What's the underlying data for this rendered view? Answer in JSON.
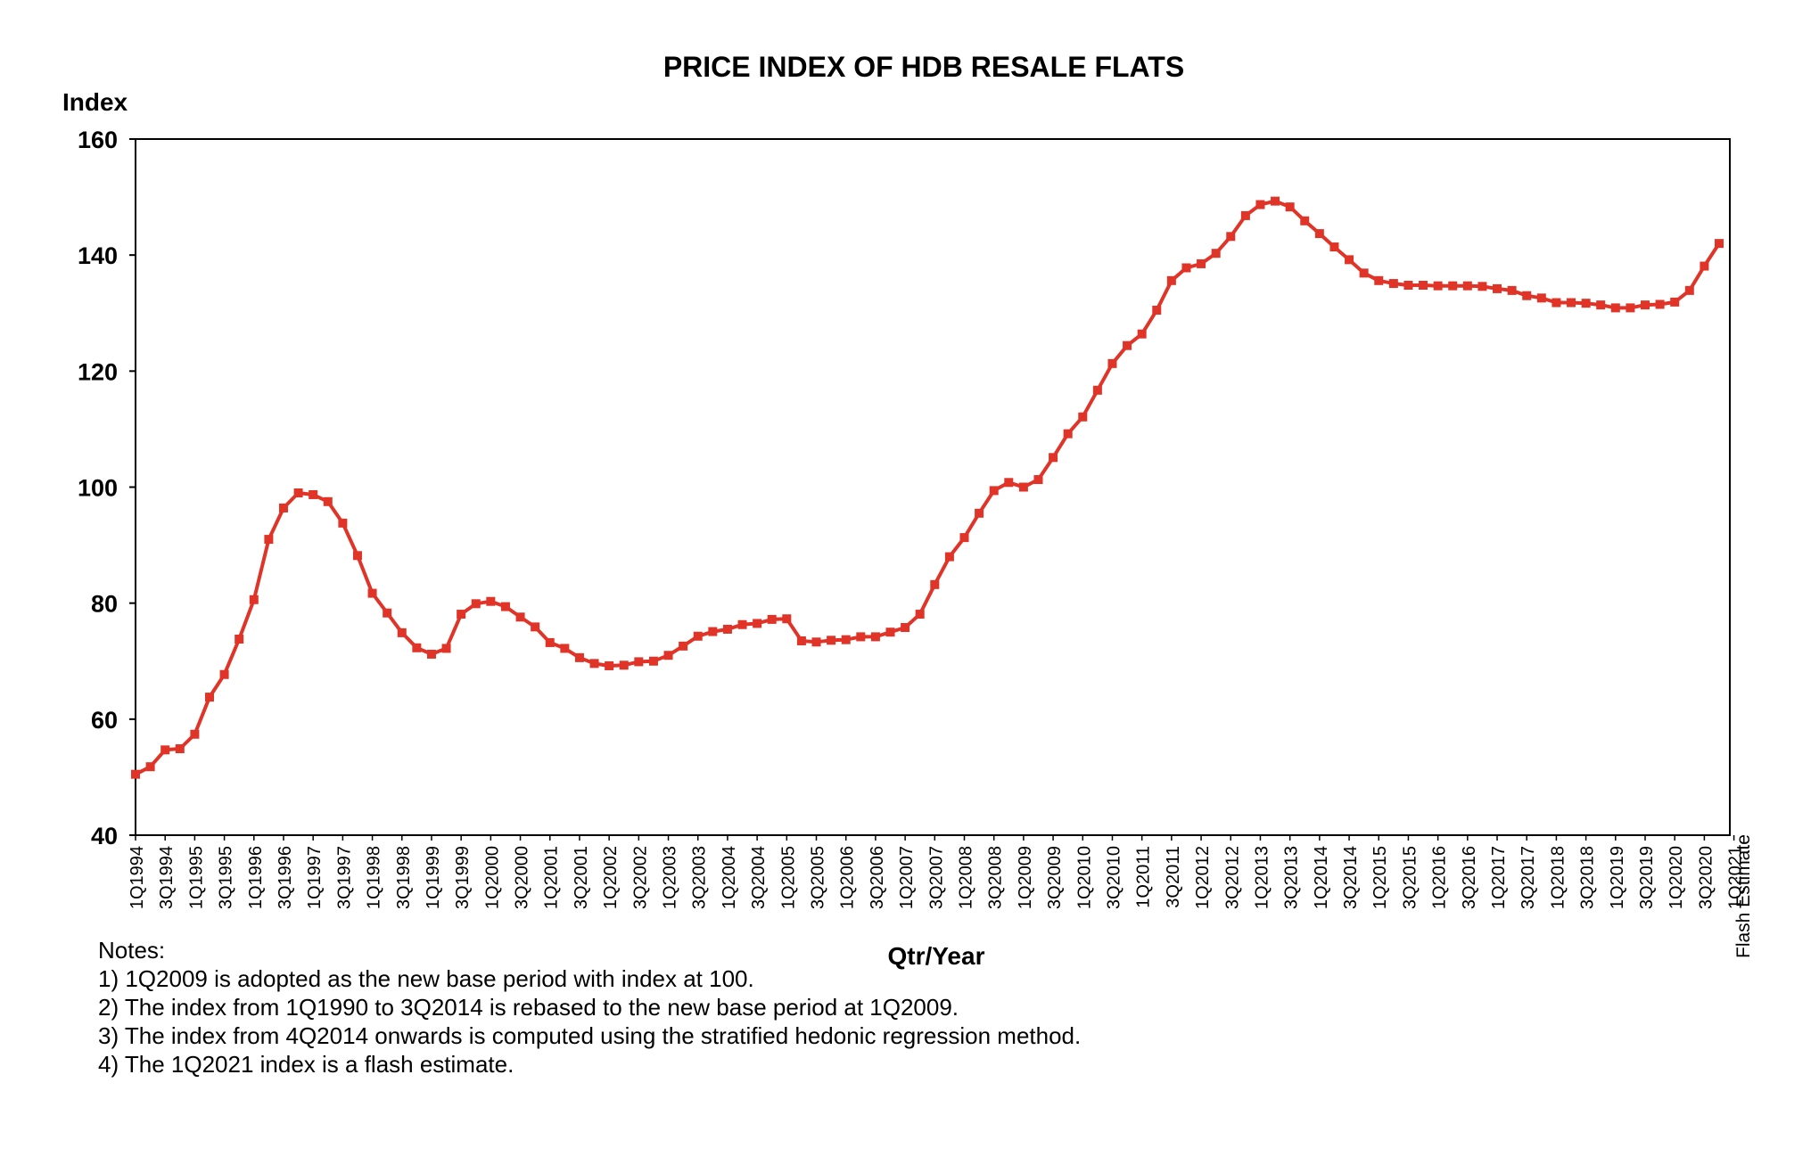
{
  "chart_data": {
    "type": "line",
    "title": "PRICE INDEX OF HDB RESALE FLATS",
    "ylabel": "Index",
    "xlabel": "Qtr/Year",
    "ylim": [
      40,
      160
    ],
    "yticks": [
      40,
      60,
      80,
      100,
      120,
      140,
      160
    ],
    "grid": false,
    "legend": "none",
    "line_color": "#E03428",
    "x_tick_labels": [
      "1Q1994",
      "3Q1994",
      "1Q1995",
      "3Q1995",
      "1Q1996",
      "3Q1996",
      "1Q1997",
      "3Q1997",
      "1Q1998",
      "3Q1998",
      "1Q1999",
      "3Q1999",
      "1Q2000",
      "3Q2000",
      "1Q2001",
      "3Q2001",
      "1Q2002",
      "3Q2002",
      "1Q2003",
      "3Q2003",
      "1Q2004",
      "3Q2004",
      "1Q2005",
      "3Q2005",
      "1Q2006",
      "3Q2006",
      "1Q2007",
      "3Q2007",
      "1Q2008",
      "3Q2008",
      "1Q2009",
      "3Q2009",
      "1Q2010",
      "3Q2010",
      "1Q2011",
      "3Q2011",
      "1Q2012",
      "3Q2012",
      "1Q2013",
      "3Q2013",
      "1Q2014",
      "3Q2014",
      "1Q2015",
      "3Q2015",
      "1Q2016",
      "3Q2016",
      "1Q2017",
      "3Q2017",
      "1Q2018",
      "3Q2018",
      "1Q2019",
      "3Q2019",
      "1Q2020",
      "3Q2020",
      "1Q2021"
    ],
    "flash_label": "Flash Estimate",
    "series": [
      {
        "values": [
          50.5,
          51.8,
          54.7,
          54.9,
          57.4,
          63.8,
          67.7,
          73.8,
          80.6,
          91.0,
          96.4,
          99.0,
          98.7,
          97.5,
          93.8,
          88.2,
          81.7,
          78.3,
          74.9,
          72.3,
          71.2,
          72.2,
          78.1,
          79.9,
          80.3,
          79.4,
          77.6,
          75.9,
          73.2,
          72.2,
          70.6,
          69.6,
          69.2,
          69.3,
          69.9,
          70.0,
          71.0,
          72.6,
          74.3,
          75.1,
          75.5,
          76.3,
          76.5,
          77.2,
          77.3,
          73.5,
          73.3,
          73.6,
          73.7,
          74.2,
          74.2,
          75.0,
          75.8,
          78.1,
          83.2,
          88.0,
          91.3,
          95.5,
          99.4,
          100.8,
          100.0,
          101.3,
          105.1,
          109.2,
          112.1,
          116.7,
          121.3,
          124.4,
          126.4,
          130.5,
          135.6,
          137.8,
          138.5,
          140.3,
          143.2,
          146.8,
          148.7,
          149.3,
          148.3,
          145.9,
          143.7,
          141.4,
          139.2,
          136.9,
          135.6,
          135.1,
          134.8,
          134.8,
          134.7,
          134.7,
          134.7,
          134.6,
          134.2,
          133.9,
          133.0,
          132.6,
          131.8,
          131.8,
          131.7,
          131.4,
          130.9,
          130.9,
          131.4,
          131.5,
          131.9,
          133.9,
          138.1,
          142.0
        ]
      }
    ]
  },
  "notes": {
    "heading": "Notes:",
    "items": [
      "1) 1Q2009 is adopted as the new base period with index at 100.",
      "2) The index from 1Q1990 to 3Q2014 is rebased to the new base period at 1Q2009.",
      "3) The index from 4Q2014 onwards is computed using the stratified hedonic regression method.",
      "4) The 1Q2021 index is a flash estimate."
    ]
  }
}
